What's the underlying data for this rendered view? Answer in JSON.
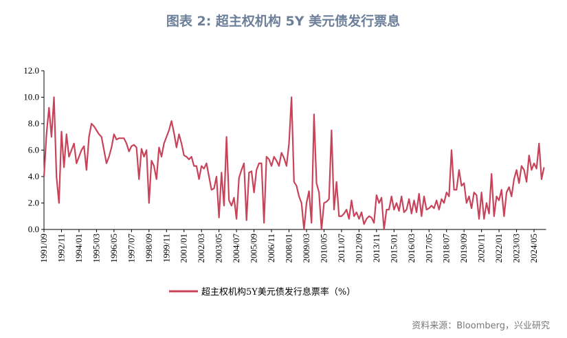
{
  "chart_data": {
    "type": "line",
    "title": "图表 2:   超主权机构 5Y 美元债发行票息",
    "source": "资料来源：Bloomberg，兴业研究",
    "categories": [
      "1991/09",
      null,
      null,
      null,
      null,
      null,
      null,
      "1992/11",
      null,
      null,
      null,
      null,
      null,
      null,
      "1994/01",
      null,
      null,
      null,
      null,
      null,
      null,
      "1995/03",
      null,
      null,
      null,
      null,
      null,
      null,
      "1996/05",
      null,
      null,
      null,
      null,
      null,
      null,
      "1997/07",
      null,
      null,
      null,
      null,
      null,
      null,
      "1998/09",
      null,
      null,
      null,
      null,
      null,
      null,
      "1999/11",
      null,
      null,
      null,
      null,
      null,
      null,
      "2001/01",
      null,
      null,
      null,
      null,
      null,
      null,
      "2002/03",
      null,
      null,
      null,
      null,
      null,
      null,
      "2003/05",
      null,
      null,
      null,
      null,
      null,
      null,
      "2004/07",
      null,
      null,
      null,
      null,
      null,
      null,
      "2005/09",
      null,
      null,
      null,
      null,
      null,
      null,
      "2006/11",
      null,
      null,
      null,
      null,
      null,
      null,
      "2008/01",
      null,
      null,
      null,
      null,
      null,
      null,
      "2009/03",
      null,
      null,
      null,
      null,
      null,
      null,
      "2010/05",
      null,
      null,
      null,
      null,
      null,
      null,
      "2011/07",
      null,
      null,
      null,
      null,
      null,
      null,
      "2012/09",
      null,
      null,
      null,
      null,
      null,
      null,
      "2013/11",
      null,
      null,
      null,
      null,
      null,
      null,
      "2015/01",
      null,
      null,
      null,
      null,
      null,
      null,
      "2016/03",
      null,
      null,
      null,
      null,
      null,
      null,
      "2017/05",
      null,
      null,
      null,
      null,
      null,
      null,
      "2018/07",
      null,
      null,
      null,
      null,
      null,
      null,
      "2019/09",
      null,
      null,
      null,
      null,
      null,
      null,
      "2020/11",
      null,
      null,
      null,
      null,
      null,
      null,
      "2022/01",
      null,
      null,
      null,
      null,
      null,
      null,
      "2023/03",
      null,
      null,
      null,
      null,
      null,
      null,
      "2024/05",
      null,
      null,
      null,
      null
    ],
    "series": [
      {
        "name": "超主权机构5Y美元债发行息票率（%）",
        "color": "#c8435a",
        "values": [
          4.0,
          7.2,
          9.2,
          7.0,
          10.0,
          4.0,
          2.0,
          7.4,
          4.7,
          7.2,
          5.5,
          6.0,
          6.5,
          5.0,
          5.5,
          6.0,
          6.3,
          4.5,
          7.0,
          8.0,
          7.8,
          7.5,
          7.2,
          7.0,
          6.0,
          5.0,
          5.5,
          6.2,
          7.2,
          6.8,
          6.9,
          6.9,
          6.9,
          6.5,
          5.9,
          6.3,
          6.4,
          6.2,
          3.8,
          6.1,
          5.5,
          6.0,
          2.0,
          5.2,
          4.8,
          3.8,
          6.2,
          5.5,
          6.5,
          7.0,
          7.5,
          8.2,
          7.3,
          6.2,
          7.2,
          6.5,
          5.6,
          5.5,
          5.3,
          5.5,
          4.8,
          4.8,
          3.8,
          4.8,
          4.6,
          5.0,
          4.0,
          3.0,
          3.1,
          4.0,
          0.9,
          4.3,
          1.8,
          7.0,
          2.2,
          1.8,
          2.4,
          0.8,
          3.9,
          4.5,
          5.0,
          0.7,
          4.3,
          4.4,
          2.8,
          4.5,
          5.0,
          5.0,
          0.5,
          5.5,
          5.3,
          4.8,
          5.5,
          5.2,
          4.8,
          5.8,
          5.4,
          4.8,
          6.5,
          10.0,
          3.6,
          3.3,
          2.5,
          2.0,
          0.0,
          2.0,
          2.9,
          0.5,
          8.7,
          3.5,
          2.8,
          0.0,
          2.0,
          2.1,
          2.3,
          7.5,
          1.5,
          3.6,
          1.0,
          1.0,
          1.2,
          1.5,
          0.8,
          2.2,
          1.0,
          1.3,
          0.8,
          1.3,
          0.4,
          0.8,
          1.0,
          0.9,
          0.5,
          2.6,
          2.0,
          2.4,
          0.0,
          1.5,
          1.5,
          2.5,
          1.5,
          2.0,
          1.4,
          2.5,
          1.3,
          1.5,
          2.3,
          1.2,
          2.2,
          1.3,
          2.7,
          1.0,
          2.5,
          1.5,
          1.6,
          1.8,
          1.6,
          2.2,
          1.5,
          2.3,
          2.0,
          2.8,
          2.5,
          6.0,
          3.0,
          3.0,
          4.5,
          3.3,
          3.5,
          2.0,
          2.5,
          1.6,
          2.8,
          2.6,
          0.8,
          2.8,
          0.8,
          2.0,
          1.2,
          4.2,
          1.0,
          2.5,
          2.2,
          3.0,
          1.0,
          2.8,
          3.2,
          2.5,
          3.8,
          4.5,
          3.5,
          4.8,
          4.5,
          3.6,
          5.6,
          4.5,
          5.0,
          4.6,
          6.5,
          3.8,
          4.7
        ]
      }
    ],
    "ylim": [
      0,
      12
    ],
    "yticks": [
      {
        "value": 0,
        "label": "0.0"
      },
      {
        "value": 2,
        "label": "2.0"
      },
      {
        "value": 4,
        "label": "4.0"
      },
      {
        "value": 6,
        "label": "6.0"
      },
      {
        "value": 8,
        "label": "8.0"
      },
      {
        "value": 10,
        "label": "10.0"
      },
      {
        "value": 12,
        "label": "12.0"
      }
    ],
    "legend": "bottom"
  }
}
